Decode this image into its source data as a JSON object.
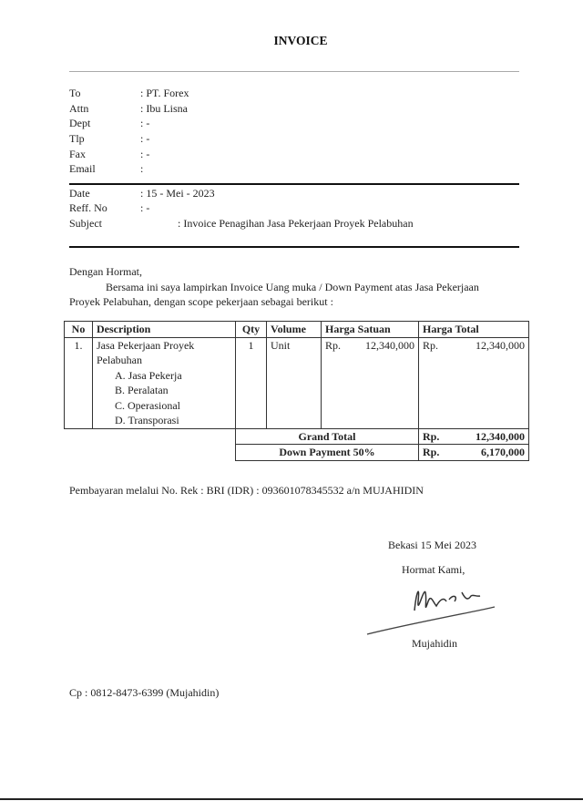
{
  "title": "INVOICE",
  "recipient": [
    {
      "label": "To",
      "value": ": PT. Forex"
    },
    {
      "label": "Attn",
      "value": ": Ibu Lisna"
    },
    {
      "label": "Dept",
      "value": ": -"
    },
    {
      "label": "Tlp",
      "value": ": -"
    },
    {
      "label": "Fax",
      "value": ":  -"
    },
    {
      "label": "Email",
      "value": ":"
    }
  ],
  "meta": [
    {
      "label": "Date",
      "value": ": 15 - Mei - 2023"
    },
    {
      "label": "Reff. No",
      "value": ": -"
    },
    {
      "label": "Subject",
      "value": ": Invoice Penagihan Jasa Pekerjaan Proyek Pelabuhan"
    }
  ],
  "greeting": "Dengan Hormat,",
  "intro_line1": "Bersama ini saya lampirkan Invoice Uang muka / Down Payment atas Jasa Pekerjaan",
  "intro_line2": "Proyek Pelabuhan, dengan scope pekerjaan sebagai berikut :",
  "table": {
    "headers": [
      "No",
      "Description",
      "Qty",
      "Volume",
      "Harga Satuan",
      "Harga Total"
    ],
    "row": {
      "no": "1.",
      "desc_line1": "Jasa Pekerjaan Proyek",
      "desc_line2": "Pelabuhan",
      "subitems": [
        "A.  Jasa Pekerja",
        "B.  Peralatan",
        "C.  Operasional",
        "D.  Transporasi"
      ],
      "qty": "1",
      "volume": "Unit",
      "unit_currency": "Rp.",
      "unit_price": "12,340,000",
      "total_currency": "Rp.",
      "total_price": "12,340,000"
    },
    "grand_total": {
      "label": "Grand Total",
      "currency": "Rp.",
      "value": "12,340,000"
    },
    "down_payment": {
      "label": "Down Payment 50%",
      "currency": "Rp.",
      "value": "6,170,000"
    }
  },
  "payment": "Pembayaran melalui No. Rek : BRI (IDR) :  093601078345532 a/n MUJAHIDIN",
  "place_date": "Bekasi 15 Mei 2023",
  "closing": "Hormat Kami,",
  "signer": "Mujahidin",
  "contact": "Cp : 0812-8473-6399 (Mujahidin)"
}
